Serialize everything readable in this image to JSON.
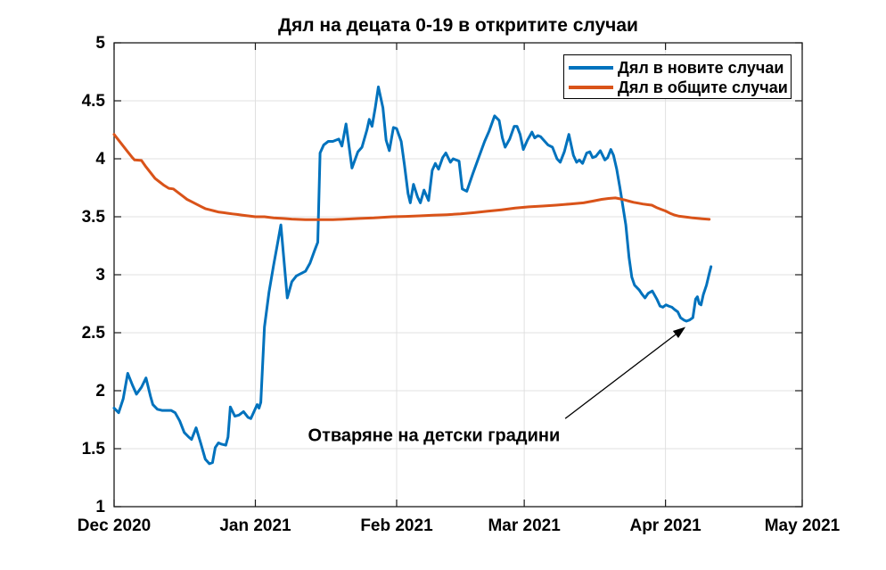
{
  "chart_data": {
    "type": "line",
    "title": "Дял на децата 0-19 в откритите случаи",
    "xlabel": "",
    "ylabel": "",
    "x_unit": "days since 1 Dec 2020",
    "xlim": [
      0,
      151
    ],
    "ylim": [
      1,
      5
    ],
    "grid": true,
    "x_ticks": [
      {
        "d": 0,
        "label": "Dec 2020"
      },
      {
        "d": 31,
        "label": "Jan 2021"
      },
      {
        "d": 62,
        "label": "Feb 2021"
      },
      {
        "d": 90,
        "label": "Mar 2021"
      },
      {
        "d": 121,
        "label": "Apr 2021"
      },
      {
        "d": 151,
        "label": "May 2021"
      }
    ],
    "y_ticks": [
      {
        "v": 1,
        "label": "1"
      },
      {
        "v": 1.5,
        "label": "1.5"
      },
      {
        "v": 2,
        "label": "2"
      },
      {
        "v": 2.5,
        "label": "2.5"
      },
      {
        "v": 3,
        "label": "3"
      },
      {
        "v": 3.5,
        "label": "3.5"
      },
      {
        "v": 4,
        "label": "4"
      },
      {
        "v": 4.5,
        "label": "4.5"
      },
      {
        "v": 5,
        "label": "5"
      }
    ],
    "legend": {
      "position": "top-right",
      "boxed": true
    },
    "series": [
      {
        "name": "Дял в новите случаи",
        "color": "#0072BD",
        "points": [
          [
            0,
            1.85
          ],
          [
            1,
            1.81
          ],
          [
            2,
            1.93
          ],
          [
            3,
            2.15
          ],
          [
            4,
            2.05
          ],
          [
            4.9,
            1.97
          ],
          [
            6,
            2.03
          ],
          [
            7,
            2.11
          ],
          [
            8,
            1.95
          ],
          [
            8.5,
            1.88
          ],
          [
            9.5,
            1.84
          ],
          [
            10.5,
            1.83
          ],
          [
            11.5,
            1.83
          ],
          [
            12.5,
            1.83
          ],
          [
            13.4,
            1.81
          ],
          [
            14.4,
            1.74
          ],
          [
            15.4,
            1.64
          ],
          [
            16.4,
            1.6
          ],
          [
            17,
            1.58
          ],
          [
            18,
            1.68
          ],
          [
            19,
            1.55
          ],
          [
            20,
            1.41
          ],
          [
            20.9,
            1.37
          ],
          [
            21.6,
            1.38
          ],
          [
            22.2,
            1.51
          ],
          [
            22.9,
            1.55
          ],
          [
            23.5,
            1.54
          ],
          [
            24.5,
            1.53
          ],
          [
            25,
            1.6
          ],
          [
            25.5,
            1.86
          ],
          [
            26.5,
            1.78
          ],
          [
            27.4,
            1.79
          ],
          [
            28.4,
            1.82
          ],
          [
            29.4,
            1.77
          ],
          [
            30,
            1.76
          ],
          [
            30.7,
            1.82
          ],
          [
            31.4,
            1.88
          ],
          [
            31.8,
            1.85
          ],
          [
            32.2,
            1.9
          ],
          [
            33,
            2.55
          ],
          [
            34,
            2.85
          ],
          [
            35,
            3.08
          ],
          [
            36,
            3.3
          ],
          [
            36.6,
            3.43
          ],
          [
            38,
            2.8
          ],
          [
            39,
            2.94
          ],
          [
            40,
            2.99
          ],
          [
            41,
            3.01
          ],
          [
            42,
            3.03
          ],
          [
            43,
            3.1
          ],
          [
            44,
            3.21
          ],
          [
            44.7,
            3.28
          ],
          [
            45.2,
            4.05
          ],
          [
            46,
            4.12
          ],
          [
            47,
            4.15
          ],
          [
            48,
            4.15
          ],
          [
            49.3,
            4.17
          ],
          [
            50,
            4.11
          ],
          [
            50.9,
            4.3
          ],
          [
            52.2,
            3.92
          ],
          [
            53.5,
            4.06
          ],
          [
            54.4,
            4.1
          ],
          [
            55.5,
            4.25
          ],
          [
            56,
            4.34
          ],
          [
            56.6,
            4.28
          ],
          [
            57.3,
            4.44
          ],
          [
            58,
            4.62
          ],
          [
            59,
            4.44
          ],
          [
            59.7,
            4.16
          ],
          [
            60.4,
            4.07
          ],
          [
            61.3,
            4.27
          ],
          [
            62,
            4.26
          ],
          [
            63,
            4.15
          ],
          [
            63.7,
            3.95
          ],
          [
            64.5,
            3.7
          ],
          [
            65,
            3.62
          ],
          [
            65.7,
            3.78
          ],
          [
            66.6,
            3.67
          ],
          [
            67.2,
            3.62
          ],
          [
            68,
            3.73
          ],
          [
            69,
            3.64
          ],
          [
            69.8,
            3.9
          ],
          [
            70.5,
            3.96
          ],
          [
            71.2,
            3.91
          ],
          [
            72.1,
            4.01
          ],
          [
            72.8,
            4.05
          ],
          [
            73.8,
            3.97
          ],
          [
            74.4,
            4.0
          ],
          [
            75.7,
            3.98
          ],
          [
            76.4,
            3.74
          ],
          [
            77.4,
            3.72
          ],
          [
            78.7,
            3.87
          ],
          [
            80,
            4.01
          ],
          [
            81.3,
            4.15
          ],
          [
            82.3,
            4.24
          ],
          [
            83.5,
            4.37
          ],
          [
            84.5,
            4.33
          ],
          [
            85.2,
            4.18
          ],
          [
            85.8,
            4.1
          ],
          [
            86.8,
            4.17
          ],
          [
            87.8,
            4.28
          ],
          [
            88.4,
            4.28
          ],
          [
            89.1,
            4.21
          ],
          [
            89.8,
            4.08
          ],
          [
            90.7,
            4.16
          ],
          [
            91.7,
            4.23
          ],
          [
            92.3,
            4.18
          ],
          [
            93,
            4.2
          ],
          [
            93.6,
            4.19
          ],
          [
            95.2,
            4.12
          ],
          [
            96.2,
            4.1
          ],
          [
            97.2,
            4.0
          ],
          [
            97.9,
            3.97
          ],
          [
            98.8,
            4.06
          ],
          [
            99.8,
            4.21
          ],
          [
            100.8,
            4.03
          ],
          [
            101.5,
            3.97
          ],
          [
            102.1,
            3.99
          ],
          [
            102.8,
            3.96
          ],
          [
            103.7,
            4.05
          ],
          [
            104.4,
            4.06
          ],
          [
            105,
            4.01
          ],
          [
            105.7,
            4.02
          ],
          [
            106.7,
            4.07
          ],
          [
            107.7,
            3.99
          ],
          [
            108.3,
            4.01
          ],
          [
            109,
            4.08
          ],
          [
            109.6,
            4.03
          ],
          [
            110.3,
            3.91
          ],
          [
            111,
            3.75
          ],
          [
            111.6,
            3.6
          ],
          [
            112.3,
            3.43
          ],
          [
            113,
            3.15
          ],
          [
            113.6,
            2.98
          ],
          [
            114.2,
            2.91
          ],
          [
            115.2,
            2.87
          ],
          [
            115.9,
            2.83
          ],
          [
            116.5,
            2.8
          ],
          [
            117.2,
            2.84
          ],
          [
            118.1,
            2.86
          ],
          [
            119.1,
            2.79
          ],
          [
            119.8,
            2.73
          ],
          [
            120.4,
            2.72
          ],
          [
            121.1,
            2.74
          ],
          [
            121.7,
            2.73
          ],
          [
            122.4,
            2.72
          ],
          [
            123,
            2.7
          ],
          [
            123.7,
            2.68
          ],
          [
            124.3,
            2.63
          ],
          [
            125,
            2.61
          ],
          [
            125.6,
            2.6
          ],
          [
            126.3,
            2.61
          ],
          [
            127,
            2.63
          ],
          [
            127.6,
            2.79
          ],
          [
            128,
            2.81
          ],
          [
            128.4,
            2.75
          ],
          [
            128.8,
            2.74
          ],
          [
            129.3,
            2.83
          ],
          [
            130,
            2.91
          ],
          [
            130.6,
            3.01
          ],
          [
            131,
            3.07
          ]
        ]
      },
      {
        "name": "Дял в общите случаи",
        "color": "#D95319",
        "points": [
          [
            0,
            4.21
          ],
          [
            1,
            4.16
          ],
          [
            2,
            4.11
          ],
          [
            3,
            4.06
          ],
          [
            4,
            4.01
          ],
          [
            4.5,
            3.99
          ],
          [
            6,
            3.985
          ],
          [
            7,
            3.93
          ],
          [
            8,
            3.88
          ],
          [
            9,
            3.83
          ],
          [
            10,
            3.8
          ],
          [
            11,
            3.77
          ],
          [
            12,
            3.745
          ],
          [
            13,
            3.74
          ],
          [
            14,
            3.71
          ],
          [
            15,
            3.68
          ],
          [
            16,
            3.65
          ],
          [
            17,
            3.63
          ],
          [
            18,
            3.61
          ],
          [
            19,
            3.59
          ],
          [
            20,
            3.57
          ],
          [
            21,
            3.56
          ],
          [
            22,
            3.55
          ],
          [
            23,
            3.54
          ],
          [
            24,
            3.535
          ],
          [
            25,
            3.53
          ],
          [
            26,
            3.525
          ],
          [
            27,
            3.52
          ],
          [
            28,
            3.515
          ],
          [
            29,
            3.51
          ],
          [
            30,
            3.505
          ],
          [
            31,
            3.5
          ],
          [
            33,
            3.5
          ],
          [
            35,
            3.49
          ],
          [
            37,
            3.485
          ],
          [
            39,
            3.48
          ],
          [
            42,
            3.475
          ],
          [
            45,
            3.475
          ],
          [
            48,
            3.475
          ],
          [
            51,
            3.48
          ],
          [
            54,
            3.485
          ],
          [
            57,
            3.49
          ],
          [
            59,
            3.495
          ],
          [
            61,
            3.5
          ],
          [
            64,
            3.503
          ],
          [
            67,
            3.508
          ],
          [
            70,
            3.513
          ],
          [
            73,
            3.518
          ],
          [
            76,
            3.525
          ],
          [
            79,
            3.535
          ],
          [
            82,
            3.548
          ],
          [
            85,
            3.56
          ],
          [
            88,
            3.575
          ],
          [
            91,
            3.585
          ],
          [
            94,
            3.592
          ],
          [
            97,
            3.6
          ],
          [
            100,
            3.61
          ],
          [
            103,
            3.62
          ],
          [
            105,
            3.635
          ],
          [
            107,
            3.65
          ],
          [
            108.5,
            3.658
          ],
          [
            110,
            3.662
          ],
          [
            111,
            3.655
          ],
          [
            112,
            3.645
          ],
          [
            113,
            3.635
          ],
          [
            114,
            3.625
          ],
          [
            115,
            3.618
          ],
          [
            116,
            3.61
          ],
          [
            117,
            3.605
          ],
          [
            118,
            3.6
          ],
          [
            119,
            3.58
          ],
          [
            120,
            3.565
          ],
          [
            121,
            3.55
          ],
          [
            122,
            3.53
          ],
          [
            123,
            3.515
          ],
          [
            124,
            3.505
          ],
          [
            125,
            3.5
          ],
          [
            126,
            3.495
          ],
          [
            127,
            3.49
          ],
          [
            128,
            3.487
          ],
          [
            129,
            3.483
          ],
          [
            130,
            3.48
          ],
          [
            130.6,
            3.478
          ]
        ]
      }
    ],
    "annotation": {
      "text": "Отваряне на детски градини",
      "text_at": [
        70.2,
        1.61
      ],
      "arrow": {
        "from": [
          99,
          1.76
        ],
        "to": [
          125.4,
          2.55
        ]
      }
    }
  }
}
